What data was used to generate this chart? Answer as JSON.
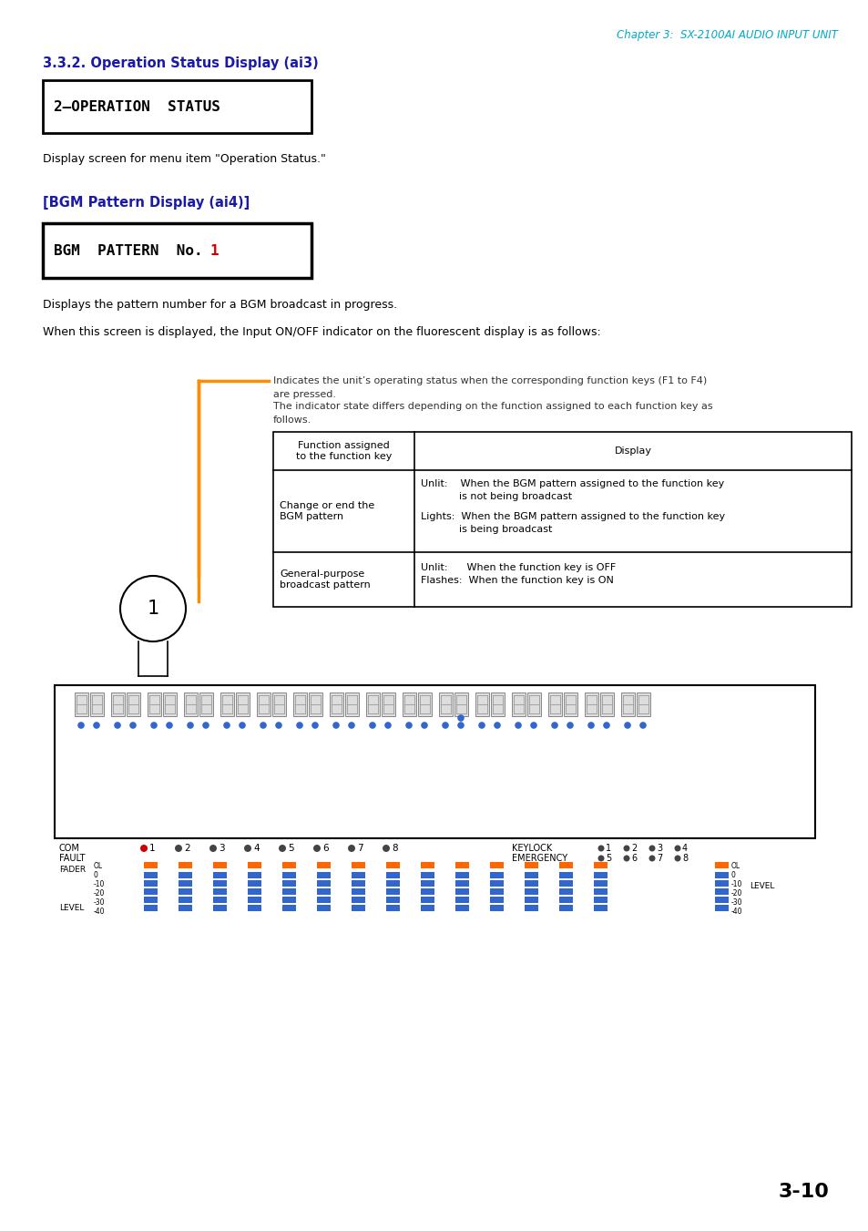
{
  "chapter_header": "Chapter 3:  SX-2100AI AUDIO INPUT UNIT",
  "chapter_header_color": "#00AACC",
  "section_title": "3.3.2. Operation Status Display (ai3)",
  "section_title_color": "#1a1aaa",
  "lcd_display1": "2–OPERATION  STATUS",
  "lcd_caption1": "Display screen for menu item \"Operation Status.\"",
  "section2_title": "[BGM Pattern Display (ai4)]",
  "section2_title_color": "#1a1aaa",
  "lcd_display2_prefix": "BGM  PATTERN  No.",
  "lcd_display2_number": "1",
  "lcd_display2_number_color": "#cc0000",
  "caption2a": "Displays the pattern number for a BGM broadcast in progress.",
  "caption2b": "When this screen is displayed, the Input ON/OFF indicator on the fluorescent display is as follows:",
  "annotation_line1": "Indicates the unit’s operating status when the corresponding function keys (F1 to F4)",
  "annotation_line2": "are pressed.",
  "annotation_line3": "The indicator state differs depending on the function assigned to each function key as",
  "annotation_line4": "follows.",
  "table_header1": "Function assigned\nto the function key",
  "table_header2": "Display",
  "table_row1_col1": "Change or end the\nBGM pattern",
  "table_row1_col2a": "Unlit:    When the BGM pattern assigned to the function key",
  "table_row1_col2b": "            is not being broadcast",
  "table_row1_col2c": "Lights:  When the BGM pattern assigned to the function key",
  "table_row1_col2d": "            is being broadcast",
  "table_row2_col1": "General-purpose\nbroadcast pattern",
  "table_row2_col2a": "Unlit:      When the function key is OFF",
  "table_row2_col2b": "Flashes:  When the function key is ON",
  "page_number": "3-10",
  "orange_color": "#FF8C00",
  "bg_color": "#ffffff"
}
